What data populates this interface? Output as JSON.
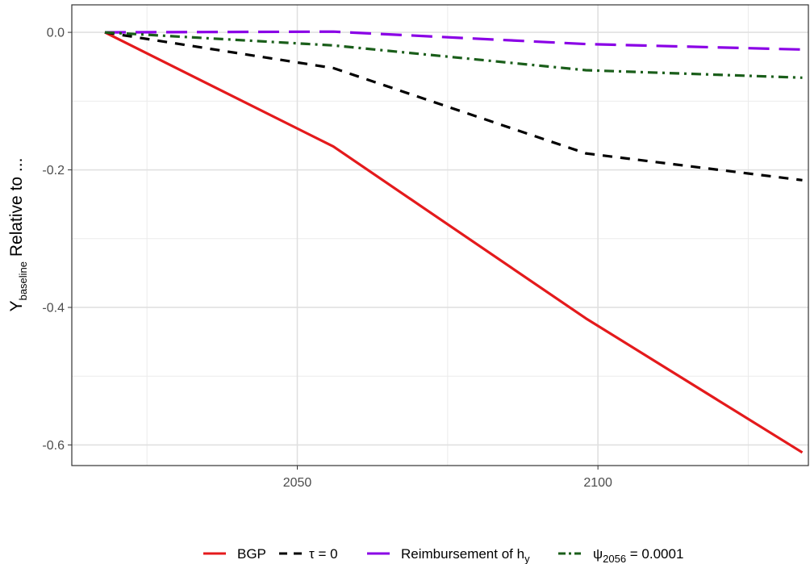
{
  "chart_data": {
    "type": "line",
    "xlabel": "",
    "ylabel": {
      "main": "Y",
      "sub": "baseline",
      "rest": " Relative to ..."
    },
    "xlim": [
      2012.5,
      2135
    ],
    "ylim": [
      -0.63,
      0.04
    ],
    "xticks": [
      {
        "value": 2050,
        "label": "2050"
      },
      {
        "value": 2100,
        "label": "2100"
      }
    ],
    "yticks": [
      {
        "value": 0.0,
        "label": "0.0"
      },
      {
        "value": -0.2,
        "label": "-0.2"
      },
      {
        "value": -0.4,
        "label": "-0.4"
      },
      {
        "value": -0.6,
        "label": "-0.6"
      }
    ],
    "grid": true,
    "legend_position": "bottom",
    "series": [
      {
        "key": "bgp",
        "color": "#e41a1c",
        "dash": "solid",
        "x": [
          2018,
          2056,
          2098,
          2134
        ],
        "y": [
          0.0,
          -0.166,
          -0.416,
          -0.611
        ]
      },
      {
        "key": "tau",
        "color": "#000000",
        "dash": "dashed",
        "x": [
          2018,
          2056,
          2098,
          2134
        ],
        "y": [
          0.0,
          -0.052,
          -0.176,
          -0.215
        ]
      },
      {
        "key": "reimb",
        "color": "#8a00e6",
        "dash": "longdash",
        "x": [
          2018,
          2056,
          2098,
          2134
        ],
        "y": [
          0.0,
          0.001,
          -0.017,
          -0.025
        ]
      },
      {
        "key": "psi",
        "color": "#1a5e1a",
        "dash": "dotdash",
        "x": [
          2018,
          2056,
          2098,
          2134
        ],
        "y": [
          0.0,
          -0.019,
          -0.055,
          -0.066
        ]
      }
    ],
    "legend": [
      {
        "key": "bgp",
        "text": "BGP"
      },
      {
        "key": "tau",
        "text": "τ = 0"
      },
      {
        "key": "reimb",
        "text": "Reimbursement of h",
        "sub": "y"
      },
      {
        "key": "psi",
        "symbol": "ψ",
        "sub": "2056",
        "text": " = 0.0001"
      }
    ]
  }
}
